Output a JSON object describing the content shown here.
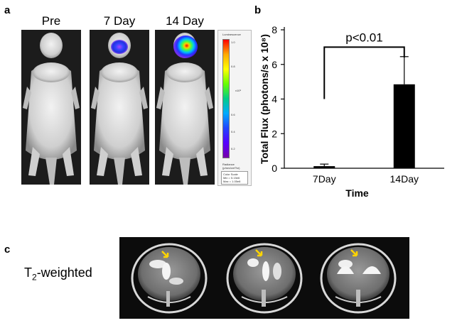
{
  "panel_a": {
    "label": "a",
    "mice": [
      {
        "label": "Pre",
        "signal": "none"
      },
      {
        "label": "7 Day",
        "signal": "medium"
      },
      {
        "label": "14 Day",
        "signal": "high"
      }
    ],
    "colorbar": {
      "title": "Luminescence",
      "ticks": [
        "1.0",
        "0.8",
        "0.6",
        "0.4",
        "0.2"
      ],
      "exponent": "x10⁸",
      "units_label": "Radiance",
      "units": "(p/sec/cm²/sr)",
      "scale_title": "Color Scale",
      "scale_min": "Min = 5.15e6",
      "scale_max": "Max = 1.05e8",
      "colors": [
        "#ff0000",
        "#ffaa00",
        "#ffff00",
        "#66ff00",
        "#00cc88",
        "#00aaff",
        "#2244ff",
        "#5500ff",
        "#7700aa"
      ]
    }
  },
  "panel_b": {
    "label": "b"
  },
  "panel_c": {
    "label": "c",
    "row_label_main": "T",
    "row_label_sub": "2",
    "row_label_rest": "-weighted"
  },
  "chart_data": {
    "type": "bar",
    "categories": [
      "7Day",
      "14Day"
    ],
    "values": [
      0.12,
      4.85
    ],
    "errors": [
      0.12,
      1.6
    ],
    "xlabel": "Time",
    "ylabel": "Total Flux (photons/s x 10⁸)",
    "ylim": [
      0,
      8
    ],
    "yticks": [
      0,
      2,
      4,
      6,
      8
    ],
    "annotation": "p<0.01",
    "bar_color": "#000000"
  }
}
